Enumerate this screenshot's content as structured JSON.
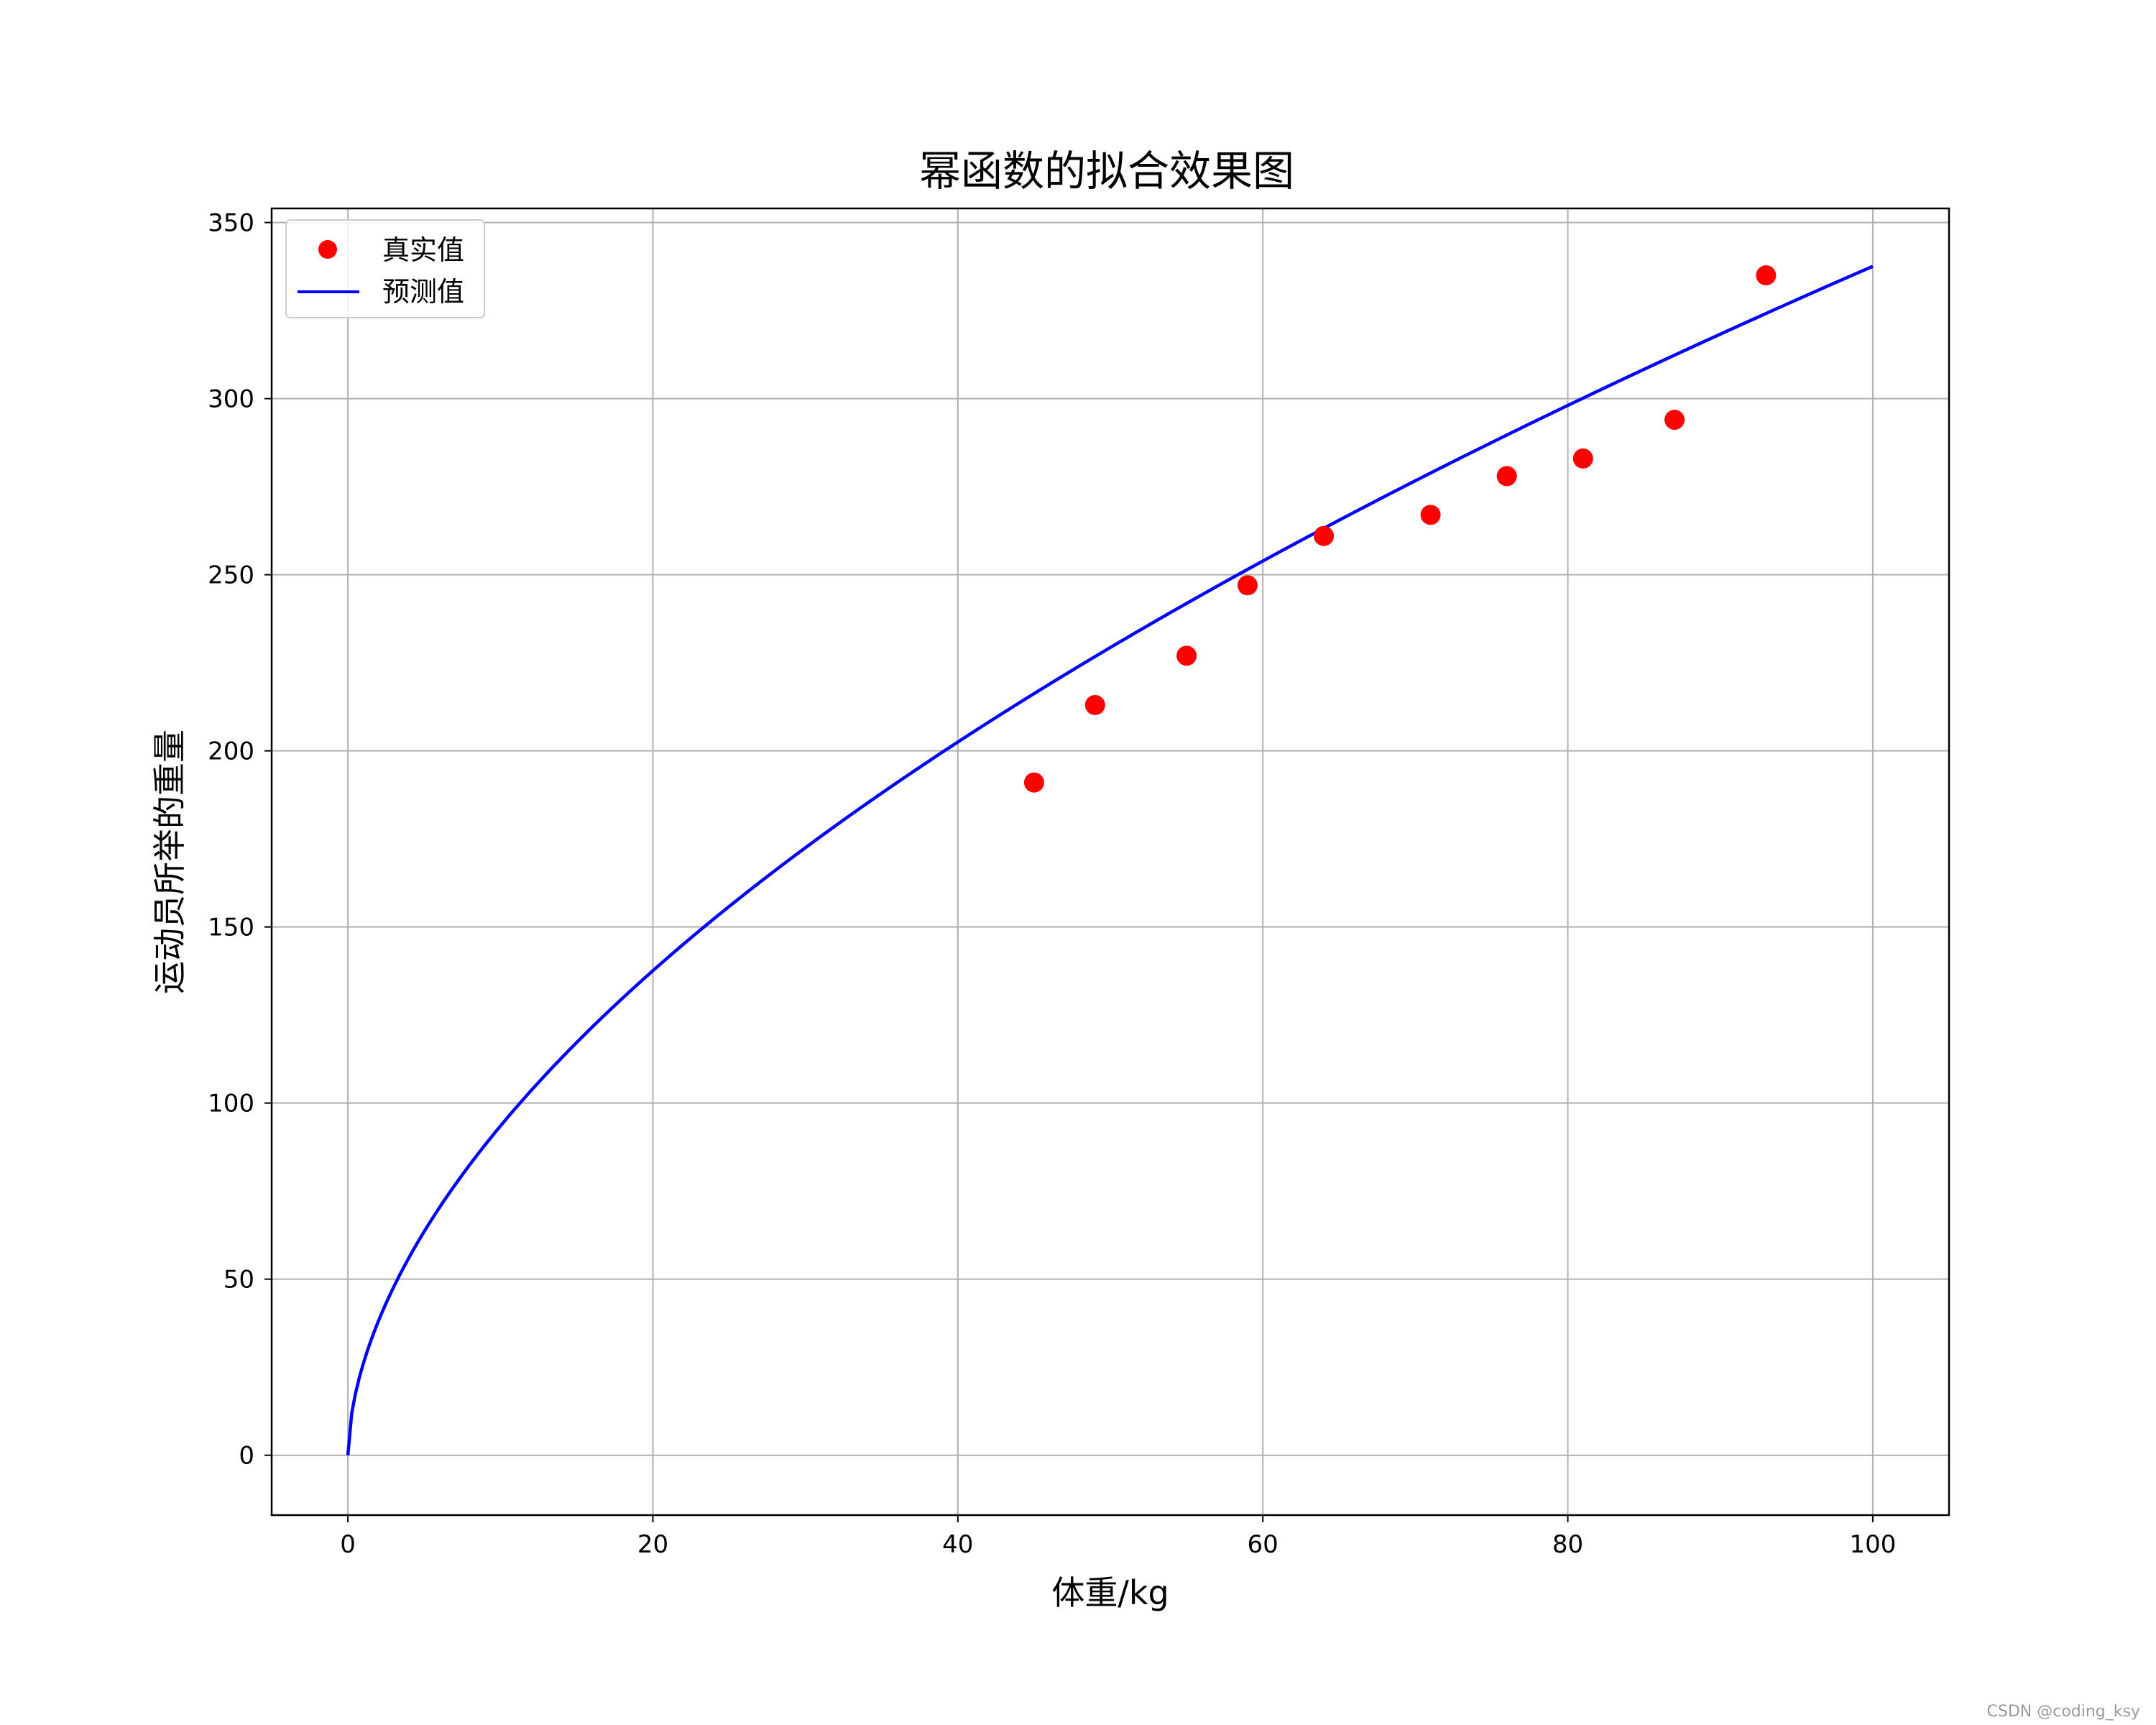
{
  "chart_data": {
    "type": "scatter",
    "title": "幂函数的拟合效果图",
    "xlabel": "体重/kg",
    "ylabel": "运动员所举的重量",
    "xlim": [
      -5,
      105
    ],
    "ylim": [
      -17,
      354
    ],
    "xticks": [
      0,
      20,
      40,
      60,
      80,
      100
    ],
    "yticks": [
      0,
      50,
      100,
      150,
      200,
      250,
      300,
      350
    ],
    "grid": true,
    "legend_position": "top-left",
    "series": [
      {
        "name": "真实值",
        "kind": "scatter",
        "color": "#ff0000",
        "x": [
          45,
          49,
          55,
          59,
          64,
          71,
          76,
          81,
          87,
          93
        ],
        "y": [
          191,
          213,
          227,
          247,
          261,
          267,
          278,
          283,
          294,
          335
        ]
      },
      {
        "name": "预测值",
        "kind": "line",
        "color": "#0000ff",
        "function": "power",
        "coefficient": 25.88,
        "exponent": 0.5577,
        "x_range": [
          0,
          100
        ]
      }
    ]
  },
  "watermark": "CSDN @coding_ksy"
}
